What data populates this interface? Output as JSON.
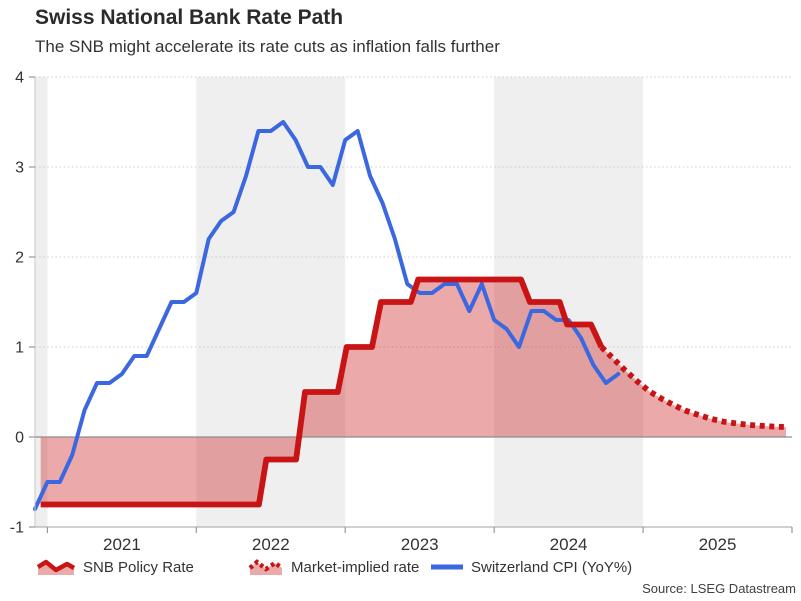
{
  "header": {
    "title": "Swiss National Bank Rate Path",
    "subtitle": "The SNB might accelerate its rate cuts as inflation falls further"
  },
  "source": "Source: LSEG Datastream",
  "legend": {
    "items": [
      {
        "label": "SNB Policy Rate",
        "series": "policy",
        "marker": "red-solid-area"
      },
      {
        "label": "Market-implied rate",
        "series": "market",
        "marker": "red-dotted-area"
      },
      {
        "label": "Switzerland CPI (YoY%)",
        "series": "cpi",
        "marker": "blue-line"
      }
    ]
  },
  "colors": {
    "policy_red": "#c81414",
    "cpi_blue": "#3b68e0",
    "area_fill": "rgba(205,30,30,0.38)",
    "band_gray": "#efefef",
    "text_dark": "#333333"
  },
  "chart_data": {
    "type": "line",
    "title": "Swiss National Bank Rate Path",
    "subtitle": "The SNB might accelerate its rate cuts as inflation falls further",
    "xlabel": "",
    "ylabel": "",
    "x_domain": [
      2020.9167,
      2026.0
    ],
    "ylim": [
      -1,
      4
    ],
    "y_ticks": [
      -1,
      0,
      1,
      2,
      3,
      4
    ],
    "x_ticks": [
      2021,
      2022,
      2023,
      2024,
      2025,
      2026
    ],
    "x_tick_labels": [
      "2021",
      "2022",
      "2023",
      "2024",
      "2025"
    ],
    "shaded_bands": [
      [
        2020.9167,
        2021
      ],
      [
        2022,
        2023
      ],
      [
        2024,
        2025
      ]
    ],
    "grid": "dotted-horizontal",
    "legend_position": "bottom",
    "fill_baseline": 0,
    "style": {
      "band_color": "#efefef",
      "grid_color": "#cbcbcb",
      "zero_line_color": "#8d8d8d",
      "axis_color": "#b3b3b3",
      "left_axis_color": "#c8c8c8",
      "tick_color": "#999999",
      "fill_color": "rgba(205,30,30,0.38)",
      "label_color": "#333333"
    },
    "series": [
      {
        "id": "policy",
        "name": "SNB Policy Rate",
        "type": "step-line",
        "color": "#c81414",
        "width": 5.8,
        "points": [
          [
            2020.955,
            -0.75
          ],
          [
            2022.42,
            -0.75
          ],
          [
            2022.47,
            -0.25
          ],
          [
            2022.67,
            -0.25
          ],
          [
            2022.73,
            0.5
          ],
          [
            2022.95,
            0.5
          ],
          [
            2023.01,
            1.0
          ],
          [
            2023.18,
            1.0
          ],
          [
            2023.24,
            1.5
          ],
          [
            2023.44,
            1.5
          ],
          [
            2023.49,
            1.75
          ],
          [
            2024.18,
            1.75
          ],
          [
            2024.24,
            1.5
          ],
          [
            2024.44,
            1.5
          ],
          [
            2024.49,
            1.25
          ],
          [
            2024.65,
            1.25
          ],
          [
            2024.72,
            1.0
          ]
        ]
      },
      {
        "id": "market",
        "name": "Market-implied rate",
        "type": "dotted-line",
        "color": "#c81414",
        "width": 5.8,
        "points": [
          [
            2024.72,
            1.0
          ],
          [
            2024.8,
            0.87
          ],
          [
            2024.88,
            0.74
          ],
          [
            2024.96,
            0.62
          ],
          [
            2025.04,
            0.51
          ],
          [
            2025.13,
            0.42
          ],
          [
            2025.21,
            0.35
          ],
          [
            2025.29,
            0.29
          ],
          [
            2025.38,
            0.24
          ],
          [
            2025.46,
            0.2
          ],
          [
            2025.54,
            0.17
          ],
          [
            2025.63,
            0.15
          ],
          [
            2025.71,
            0.135
          ],
          [
            2025.79,
            0.125
          ],
          [
            2025.88,
            0.115
          ],
          [
            2025.96,
            0.11
          ]
        ]
      },
      {
        "id": "cpi",
        "name": "Switzerland CPI (YoY%)",
        "type": "line",
        "color": "#3b68e0",
        "width": 4,
        "x_start": 2020.9167,
        "frequency": "monthly",
        "start_label": "2020-12",
        "values": [
          -0.8,
          -0.5,
          -0.5,
          -0.2,
          0.3,
          0.6,
          0.6,
          0.7,
          0.9,
          0.9,
          1.2,
          1.5,
          1.5,
          1.6,
          2.2,
          2.4,
          2.5,
          2.9,
          3.4,
          3.4,
          3.5,
          3.3,
          3.0,
          3.0,
          2.8,
          3.3,
          3.4,
          2.9,
          2.6,
          2.2,
          1.7,
          1.6,
          1.6,
          1.7,
          1.7,
          1.4,
          1.7,
          1.3,
          1.2,
          1.0,
          1.4,
          1.4,
          1.3,
          1.3,
          1.1,
          0.8,
          0.6,
          0.7
        ]
      }
    ]
  }
}
